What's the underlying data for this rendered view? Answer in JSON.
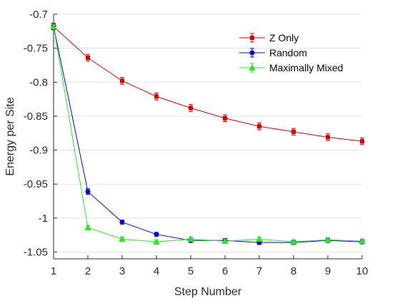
{
  "chart_data": {
    "type": "line",
    "title": "",
    "xlabel": "Step Number",
    "ylabel": "Energy per Site",
    "xlim": [
      1,
      10
    ],
    "ylim": [
      -1.06,
      -0.7
    ],
    "x_ticks": [
      1,
      2,
      3,
      4,
      5,
      6,
      7,
      8,
      9,
      10
    ],
    "y_ticks": [
      -0.7,
      -0.75,
      -0.8,
      -0.85,
      -0.9,
      -0.95,
      -1,
      -1.05
    ],
    "y_tick_labels": [
      "-0.7",
      "-0.75",
      "-0.8",
      "-0.85",
      "-0.9",
      "-0.95",
      "-1",
      "-1.05"
    ],
    "grid": "horizontal",
    "legend_position": "top-right",
    "x": [
      1,
      2,
      3,
      4,
      5,
      6,
      7,
      8,
      9,
      10
    ],
    "series": [
      {
        "name": "Z Only",
        "color": "#cc0000",
        "marker": "square",
        "values": [
          -0.718,
          -0.764,
          -0.798,
          -0.821,
          -0.838,
          -0.853,
          -0.865,
          -0.873,
          -0.881,
          -0.887
        ],
        "errors": [
          0.005,
          0.005,
          0.005,
          0.005,
          0.005,
          0.005,
          0.005,
          0.005,
          0.005,
          0.005
        ]
      },
      {
        "name": "Random",
        "color": "#0000cc",
        "marker": "circle",
        "values": [
          -0.718,
          -0.961,
          -1.006,
          -1.024,
          -1.033,
          -1.033,
          -1.036,
          -1.036,
          -1.033,
          -1.035
        ],
        "errors": [
          0.004,
          0.004,
          0.003,
          0.003,
          0.003,
          0.003,
          0.003,
          0.003,
          0.003,
          0.003
        ]
      },
      {
        "name": "Maximally Mixed",
        "color": "#33dd33",
        "marker": "triangle",
        "values": [
          -0.718,
          -1.014,
          -1.031,
          -1.035,
          -1.031,
          -1.034,
          -1.031,
          -1.035,
          -1.032,
          -1.034
        ],
        "errors": [
          0.003,
          0.003,
          0.003,
          0.003,
          0.003,
          0.003,
          0.003,
          0.003,
          0.003,
          0.003
        ]
      }
    ]
  }
}
